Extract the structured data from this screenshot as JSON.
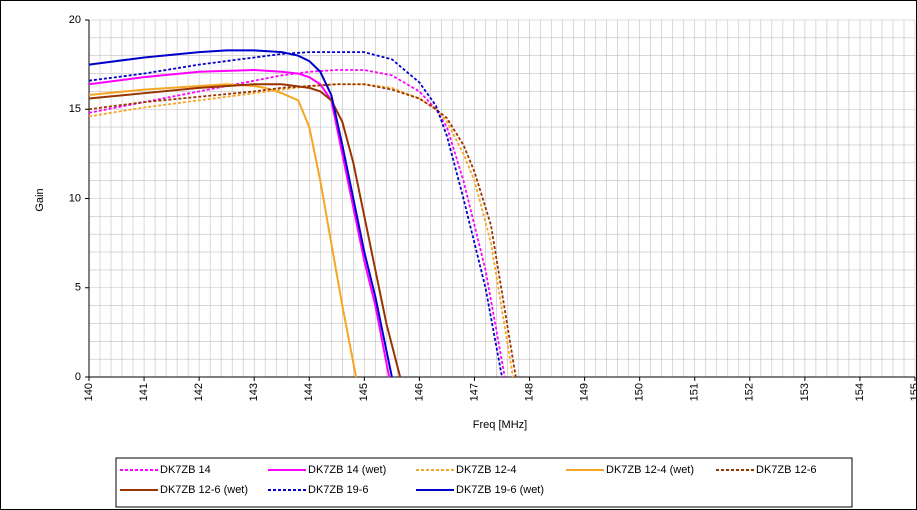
{
  "chart_data": {
    "type": "line",
    "x_label": "Freq [MHz]",
    "y_label": "Gain",
    "xlim": [
      140,
      155
    ],
    "ylim": [
      0,
      20
    ],
    "xticks": [
      140,
      141,
      142,
      143,
      144,
      145,
      146,
      147,
      148,
      149,
      150,
      151,
      152,
      153,
      154,
      155
    ],
    "yticks": [
      0,
      5,
      10,
      15,
      20
    ],
    "grid": true,
    "minor_grid": {
      "x": 0.2,
      "y": 1
    },
    "legend": "bottom",
    "series": [
      {
        "name": "DK7ZB 14",
        "color": "#ff00ff",
        "dashed": true,
        "x": [
          140,
          141,
          142,
          143,
          143.5,
          144,
          144.5,
          145,
          145.5,
          146,
          146.3,
          146.5,
          146.8,
          147,
          147.2,
          147.55
        ],
        "values": [
          14.8,
          15.4,
          16.0,
          16.6,
          16.9,
          17.1,
          17.2,
          17.2,
          16.9,
          16.0,
          15.0,
          14.0,
          11.0,
          8.5,
          6.0,
          0
        ]
      },
      {
        "name": "DK7ZB 14 (wet)",
        "color": "#ff00ff",
        "dashed": false,
        "x": [
          140,
          141,
          142,
          143,
          143.5,
          143.8,
          144,
          144.2,
          144.4,
          144.6,
          144.8,
          145,
          145.2,
          145.45
        ],
        "values": [
          16.4,
          16.8,
          17.1,
          17.2,
          17.1,
          17.0,
          16.8,
          16.4,
          15.5,
          12.5,
          9.5,
          6.5,
          4.0,
          0
        ]
      },
      {
        "name": "DK7ZB 12-4",
        "color": "#f5a623",
        "dashed": true,
        "x": [
          140,
          141,
          142,
          143,
          143.5,
          144,
          144.5,
          145,
          145.5,
          146,
          146.3,
          146.5,
          146.8,
          147,
          147.3,
          147.7
        ],
        "values": [
          14.6,
          15.1,
          15.5,
          15.9,
          16.1,
          16.3,
          16.4,
          16.4,
          16.2,
          15.6,
          15.0,
          14.3,
          12.5,
          11.0,
          7.5,
          0
        ]
      },
      {
        "name": "DK7ZB 12-4 (wet)",
        "color": "#f5a623",
        "dashed": false,
        "x": [
          140,
          141,
          142,
          142.5,
          143,
          143.2,
          143.5,
          143.8,
          144,
          144.2,
          144.4,
          144.6,
          144.85
        ],
        "values": [
          15.8,
          16.1,
          16.3,
          16.4,
          16.3,
          16.2,
          15.9,
          15.5,
          14.0,
          11.0,
          7.5,
          4.0,
          0
        ]
      },
      {
        "name": "DK7ZB 12-6",
        "color": "#993300",
        "dashed": true,
        "x": [
          140,
          141,
          142,
          143,
          143.5,
          144,
          144.5,
          145,
          145.5,
          146,
          146.3,
          146.5,
          146.8,
          147,
          147.3,
          147.75
        ],
        "values": [
          15.0,
          15.4,
          15.7,
          16.0,
          16.2,
          16.3,
          16.4,
          16.4,
          16.1,
          15.6,
          15.0,
          14.5,
          13.0,
          11.5,
          8.5,
          0
        ]
      },
      {
        "name": "DK7ZB 12-6 (wet)",
        "color": "#993300",
        "dashed": false,
        "x": [
          140,
          141,
          142,
          143,
          143.5,
          144,
          144.2,
          144.4,
          144.6,
          144.8,
          145,
          145.2,
          145.4,
          145.65
        ],
        "values": [
          15.6,
          15.9,
          16.2,
          16.4,
          16.4,
          16.2,
          16.0,
          15.5,
          14.3,
          12.0,
          9.0,
          6.0,
          3.0,
          0
        ]
      },
      {
        "name": "DK7ZB 19-6",
        "color": "#0000cc",
        "dashed": true,
        "x": [
          140,
          141,
          142,
          143,
          143.5,
          144,
          144.5,
          145,
          145.5,
          146,
          146.3,
          146.5,
          146.8,
          147,
          147.2,
          147.5
        ],
        "values": [
          16.6,
          17.0,
          17.5,
          17.9,
          18.1,
          18.2,
          18.2,
          18.2,
          17.8,
          16.5,
          15.2,
          13.5,
          10.0,
          7.5,
          5.0,
          0
        ]
      },
      {
        "name": "DK7ZB 19-6 (wet)",
        "color": "#0000cc",
        "dashed": false,
        "x": [
          140,
          141,
          142,
          142.5,
          143,
          143.5,
          143.8,
          144,
          144.2,
          144.4,
          144.6,
          144.8,
          145,
          145.2,
          145.5
        ],
        "values": [
          17.5,
          17.9,
          18.2,
          18.3,
          18.3,
          18.2,
          18.0,
          17.7,
          17.1,
          15.8,
          13.0,
          10.0,
          7.0,
          4.5,
          0
        ]
      }
    ]
  }
}
